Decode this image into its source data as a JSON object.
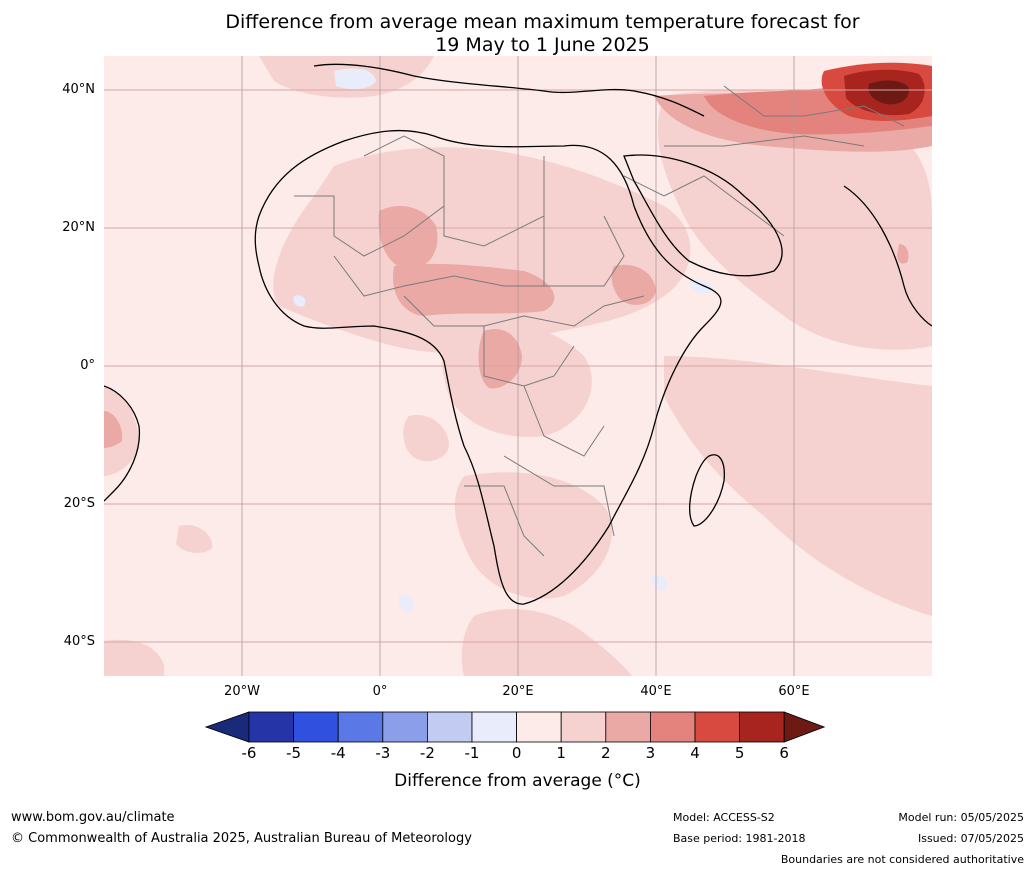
{
  "title_line1": "Difference from average mean maximum temperature forecast for",
  "title_line2": "19 May to 1 June 2025",
  "lat_labels": [
    "40°N",
    "20°N",
    "0°",
    "20°S",
    "40°S"
  ],
  "lon_labels": [
    "20°W",
    "0°",
    "20°E",
    "40°E",
    "60°E"
  ],
  "legend": {
    "title": "Difference from average (°C)",
    "ticks": [
      "-6",
      "-5",
      "-4",
      "-3",
      "-2",
      "-1",
      "0",
      "1",
      "2",
      "3",
      "4",
      "5",
      "6"
    ],
    "colors": [
      "#1a2a7a",
      "#2535a8",
      "#3050e0",
      "#5a78e6",
      "#8a9eea",
      "#c2cbf2",
      "#e9ecfa",
      "#fcebe9",
      "#f5d2cf",
      "#eba9a6",
      "#e4837d",
      "#d84a40",
      "#a8251f",
      "#6e1a14"
    ]
  },
  "footer": {
    "website": "www.bom.gov.au/climate",
    "copyright": "© Commonwealth of Australia 2025, Australian Bureau of Meteorology",
    "model": "Model: ACCESS-S2",
    "base_period": "Base period: 1981-2018",
    "model_run": "Model run: 05/05/2025",
    "issued": "Issued: 07/05/2025",
    "disclaimer": "Boundaries are not considered authoritative"
  }
}
